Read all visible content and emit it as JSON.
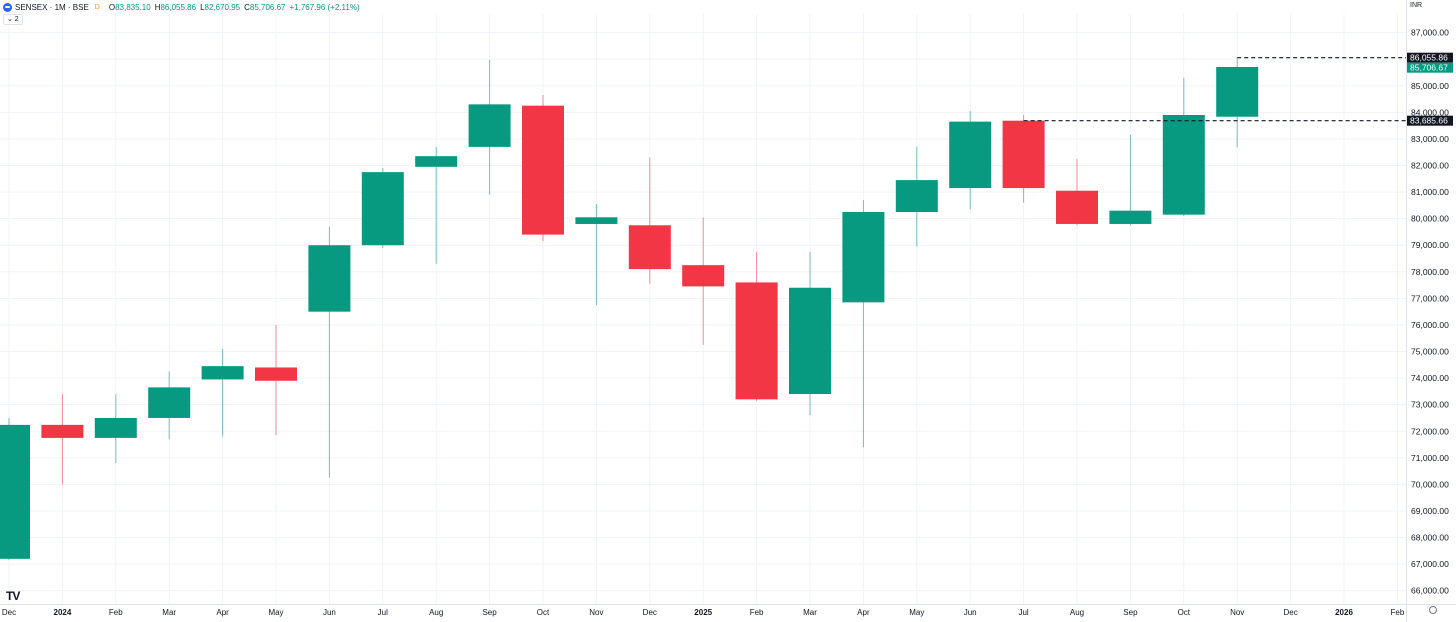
{
  "legend": {
    "title": "SENSEX · 1M · BSE",
    "market_status": "D",
    "o_label": "O",
    "o_value": "83,835.10",
    "h_label": "H",
    "h_value": "86,055.86",
    "l_label": "L",
    "l_value": "82,670.95",
    "c_label": "C",
    "c_value": "85,706.67",
    "change": "+1,767.96 (+2.11%)"
  },
  "indicator_toggle": "⌄ 2",
  "currency": "INR",
  "logo_text": "TV",
  "colors": {
    "up": "#089981",
    "down": "#f23645",
    "grid": "#f0f3fa",
    "axis_text": "#131722",
    "price_tag_bg": "#131722",
    "last_tag_bg": "#089981"
  },
  "chart_data": {
    "type": "candlestick",
    "timeframe": "1M",
    "x": [
      "Dec",
      "2024",
      "Feb",
      "Mar",
      "Apr",
      "May",
      "Jun",
      "Jul",
      "Aug",
      "Sep",
      "Oct",
      "Nov",
      "Dec",
      "2025",
      "Feb",
      "Mar",
      "Apr",
      "May",
      "Jun",
      "Jul",
      "Aug",
      "Sep",
      "Oct",
      "Nov"
    ],
    "ohlc": [
      [
        67200,
        72500,
        67150,
        72240
      ],
      [
        72240,
        73400,
        70000,
        71750
      ],
      [
        71750,
        73400,
        70800,
        72500
      ],
      [
        72500,
        74250,
        71700,
        73650
      ],
      [
        73950,
        75100,
        71800,
        74450
      ],
      [
        74400,
        76000,
        71850,
        73900
      ],
      [
        76500,
        79700,
        70250,
        79000
      ],
      [
        79000,
        81900,
        78900,
        81750
      ],
      [
        81950,
        82700,
        78300,
        82350
      ],
      [
        82700,
        85980,
        80900,
        84300
      ],
      [
        84250,
        84650,
        79150,
        79400
      ],
      [
        79800,
        80550,
        76750,
        80050
      ],
      [
        79750,
        82300,
        77550,
        78100
      ],
      [
        78250,
        80050,
        75250,
        77450
      ],
      [
        77600,
        78750,
        73150,
        73200
      ],
      [
        73400,
        78750,
        72600,
        77400
      ],
      [
        76850,
        80700,
        71400,
        80250
      ],
      [
        80250,
        82700,
        78950,
        81450
      ],
      [
        81150,
        84050,
        80350,
        83650
      ],
      [
        83685.66,
        83900,
        80600,
        81150
      ],
      [
        81050,
        82250,
        79750,
        79800
      ],
      [
        79800,
        83150,
        79750,
        80300
      ],
      [
        80150,
        85300,
        80100,
        83900
      ],
      [
        83835.1,
        86055.86,
        82670.95,
        85706.67
      ]
    ],
    "y_ticks": [
      66000,
      67000,
      68000,
      69000,
      70000,
      71000,
      72000,
      73000,
      74000,
      75000,
      76000,
      77000,
      78000,
      79000,
      80000,
      81000,
      82000,
      83000,
      84000,
      85000,
      86000,
      87000
    ],
    "y_tick_labels": [
      "66,000.00",
      "67,000.00",
      "68,000.00",
      "69,000.00",
      "70,000.00",
      "71,000.00",
      "72,000.00",
      "73,000.00",
      "74,000.00",
      "75,000.00",
      "76,000.00",
      "77,000.00",
      "78,000.00",
      "79,000.00",
      "80,000.00",
      "81,000.00",
      "82,000.00",
      "83,000.00",
      "84,000.00",
      "85,000.00",
      "86,000.00",
      "87,000.00"
    ],
    "x_labels": [
      "Dec",
      "2024",
      "Feb",
      "Mar",
      "Apr",
      "May",
      "Jun",
      "Jul",
      "Aug",
      "Sep",
      "Oct",
      "Nov",
      "Dec",
      "2025",
      "Feb",
      "Mar",
      "Apr",
      "May",
      "Jun",
      "Jul",
      "Aug",
      "Sep",
      "Oct",
      "Nov",
      "Dec",
      "2026",
      "Feb"
    ],
    "x_labels_bold": [
      "2024",
      "2025",
      "2026"
    ],
    "ylim": [
      65500,
      87700
    ],
    "price_tags": [
      {
        "value": 86055.86,
        "label": "86,055.86",
        "style": "dark"
      },
      {
        "value": 85706.67,
        "label": "85,706.67",
        "style": "last"
      },
      {
        "value": 83685.66,
        "label": "83,685.66",
        "style": "dark"
      }
    ],
    "horizontal_lines": [
      {
        "value": 86055.86,
        "from_index": 23
      },
      {
        "value": 83685.66,
        "from_index": 19
      }
    ],
    "grid": true
  }
}
